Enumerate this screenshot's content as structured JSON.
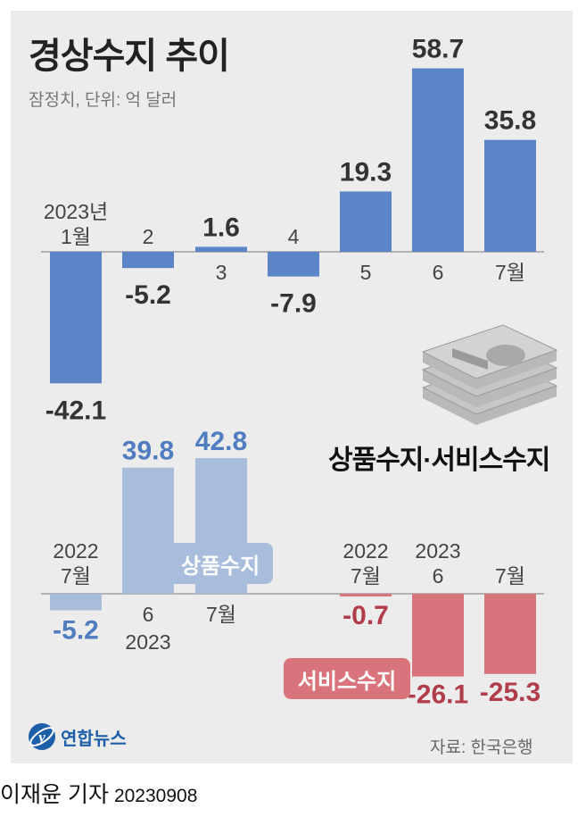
{
  "title": "경상수지 추이",
  "subtitle": "잠정치, 단위: 억 달러",
  "section2_title": "상품수지·서비스수지",
  "source": "자료: 한국은행",
  "logo": "연합뉴스",
  "byline": {
    "author": "이재윤 기자",
    "date": "20230908"
  },
  "colors": {
    "current": "#5b85c6",
    "goods": "#a8bcdc",
    "goods_label": "#4f7dc0",
    "services": "#d9747c",
    "services_label": "#b23d4a",
    "background": "#ececec"
  },
  "chart_data": [
    {
      "type": "bar",
      "title": "경상수지 추이",
      "subtitle": "잠정치, 단위: 억 달러",
      "categories": [
        "2023년 1월",
        "2",
        "3",
        "4",
        "5",
        "6",
        "7월"
      ],
      "category_lines": [
        [
          "2023년",
          "1월"
        ],
        [
          "2"
        ],
        [
          "3"
        ],
        [
          "4"
        ],
        [
          "5"
        ],
        [
          "6"
        ],
        [
          "7월"
        ]
      ],
      "values": [
        -42.1,
        -5.2,
        1.6,
        -7.9,
        19.3,
        58.7,
        35.8
      ],
      "labels": [
        "-42.1",
        "-5.2",
        "1.6",
        "-7.9",
        "19.3",
        "58.7",
        "35.8"
      ],
      "color": "#5b85c6"
    },
    {
      "type": "bar",
      "title": "상품수지·서비스수지",
      "series": [
        {
          "name": "상품수지",
          "categories": [
            "2022 7월",
            "2023 6",
            "7월"
          ],
          "category_lines": [
            [
              "2022",
              "7월"
            ],
            [
              "6",
              "2023"
            ],
            [
              "7월"
            ]
          ],
          "values": [
            -5.2,
            39.8,
            42.8
          ],
          "labels": [
            "-5.2",
            "39.8",
            "42.8"
          ],
          "color": "#a8bcdc"
        },
        {
          "name": "서비스수지",
          "categories": [
            "2022 7월",
            "2023 6",
            "7월"
          ],
          "category_lines": [
            [
              "2022",
              "7월"
            ],
            [
              "2023",
              "6"
            ],
            [
              "7월"
            ]
          ],
          "values": [
            -0.7,
            -26.1,
            -25.3
          ],
          "labels": [
            "-0.7",
            "-26.1",
            "-25.3"
          ],
          "color": "#d9747c"
        }
      ]
    }
  ]
}
